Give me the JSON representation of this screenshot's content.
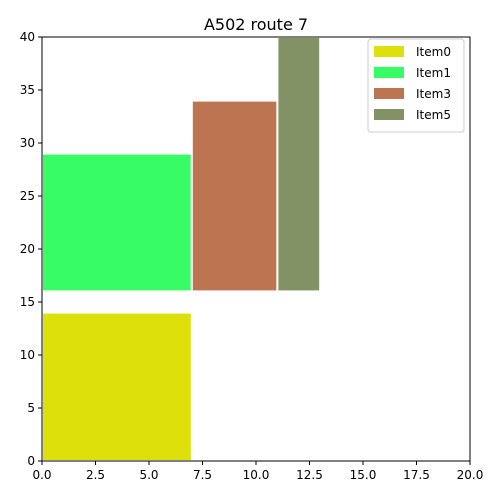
{
  "chart_data": {
    "type": "bar",
    "title": "A502 route 7",
    "xlabel": "",
    "ylabel": "",
    "xlim": [
      0,
      20
    ],
    "ylim": [
      0,
      40
    ],
    "x_ticks": [
      "0.0",
      "2.5",
      "5.0",
      "7.5",
      "10.0",
      "12.5",
      "15.0",
      "17.5",
      "20.0"
    ],
    "y_ticks": [
      "0",
      "5",
      "10",
      "15",
      "20",
      "25",
      "30",
      "35",
      "40"
    ],
    "grid": false,
    "legend_position": "top-right",
    "items": [
      {
        "name": "Item0",
        "x0": 0,
        "x1": 7,
        "y0": 0,
        "y1": 14,
        "color": "#dde00a"
      },
      {
        "name": "Item1",
        "x0": 0,
        "x1": 7,
        "y0": 16,
        "y1": 29,
        "color": "#38fc64"
      },
      {
        "name": "Item3",
        "x0": 7,
        "x1": 11,
        "y0": 16,
        "y1": 34,
        "color": "#bd7551"
      },
      {
        "name": "Item5",
        "x0": 11,
        "x1": 13,
        "y0": 16,
        "y1": 40,
        "color": "#839264"
      }
    ]
  }
}
